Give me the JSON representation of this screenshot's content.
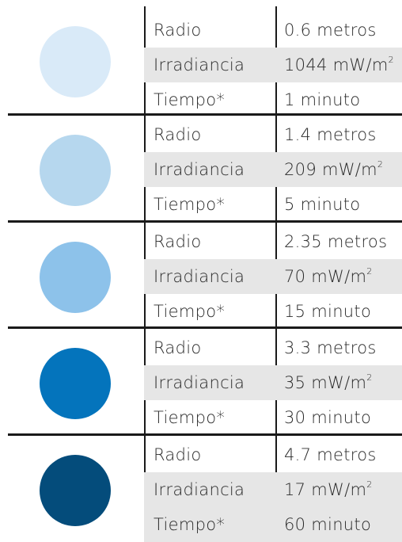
{
  "groups": [
    {
      "color": "#d9eaf8",
      "rows": [
        {
          "label": "Radio",
          "value": "0.6 metros"
        },
        {
          "label": "Irradiancia",
          "value": "1044 mW/m",
          "sup": "2"
        },
        {
          "label": "Tiempo*",
          "value": "1 minuto"
        }
      ]
    },
    {
      "color": "#b6d7ee",
      "rows": [
        {
          "label": "Radio",
          "value": "1.4 metros"
        },
        {
          "label": "Irradiancia",
          "value": "209 mW/m",
          "sup": "2"
        },
        {
          "label": "Tiempo*",
          "value": "5 minuto"
        }
      ]
    },
    {
      "color": "#8dc2ea",
      "rows": [
        {
          "label": "Radio",
          "value": "2.35 metros"
        },
        {
          "label": "Irradiancia",
          "value": "70 mW/m",
          "sup": "2"
        },
        {
          "label": "Tiempo*",
          "value": "15 minuto"
        }
      ]
    },
    {
      "color": "#0474bc",
      "rows": [
        {
          "label": "Radio",
          "value": "3.3 metros"
        },
        {
          "label": "Irradiancia",
          "value": "35 mW/m",
          "sup": "2"
        },
        {
          "label": "Tiempo*",
          "value": "30 minuto"
        }
      ]
    },
    {
      "color": "#044c7b",
      "rows": [
        {
          "label": "Radio",
          "value": "4.7 metros"
        },
        {
          "label": "Irradiancia",
          "value": "17 mW/m",
          "sup": "2"
        },
        {
          "label": "Tiempo*",
          "value": "60 minuto"
        }
      ]
    }
  ]
}
